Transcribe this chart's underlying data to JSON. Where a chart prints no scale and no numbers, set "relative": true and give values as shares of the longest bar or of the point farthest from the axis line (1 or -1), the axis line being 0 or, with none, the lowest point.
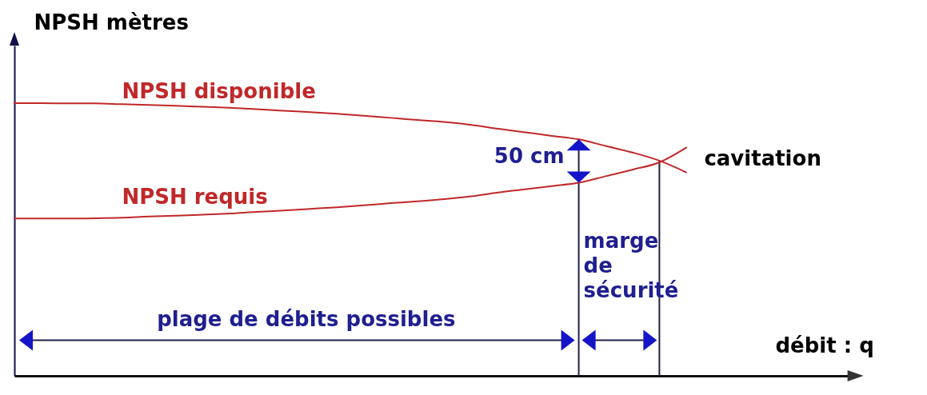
{
  "chart_data": {
    "type": "line",
    "relative": true,
    "ylabel": "NPSH mètres",
    "xlabel": "débit : q",
    "categories": [
      null,
      null,
      null,
      null,
      null,
      null,
      null,
      null,
      null,
      null,
      null,
      null,
      null,
      null,
      null,
      null,
      null,
      null,
      null,
      null,
      null,
      null,
      null,
      null,
      null,
      null,
      null,
      null,
      null,
      null,
      null,
      null
    ],
    "series": [
      {
        "name": "NPSH disponible",
        "color": "#c0282a",
        "values": [
          1.0,
          1.0,
          0.999,
          0.999,
          0.996,
          0.993,
          0.99,
          0.987,
          0.983,
          0.978,
          0.972,
          0.967,
          0.961,
          0.954,
          0.946,
          0.938,
          0.931,
          0.92,
          0.906,
          0.893,
          0.88,
          0.867,
          0.843,
          0.819,
          0.789,
          0.746,
          null,
          null,
          null,
          null,
          null,
          null
        ]
      },
      {
        "name": "NPSH requis",
        "color": "#c0282a",
        "values": [
          0.577,
          0.577,
          0.577,
          0.578,
          0.58,
          0.584,
          0.587,
          0.591,
          0.595,
          0.601,
          0.606,
          0.612,
          0.618,
          0.625,
          0.633,
          0.64,
          0.648,
          0.658,
          0.672,
          0.684,
          0.696,
          0.708,
          0.732,
          0.756,
          0.783,
          0.837,
          null,
          null,
          null,
          null,
          null,
          null
        ]
      }
    ],
    "annotations": [
      "50 cm",
      "cavitation",
      "marge de sécurité",
      "plage de débits possibles"
    ]
  }
}
